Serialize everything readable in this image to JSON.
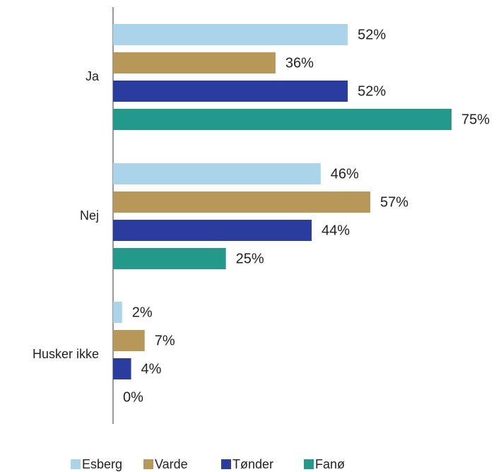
{
  "chart_data": {
    "type": "bar",
    "orientation": "horizontal",
    "categories": [
      "Ja",
      "Nej",
      "Husker ikke"
    ],
    "series": [
      {
        "name": "Esberg",
        "color": "#a9d4ea",
        "values": [
          52,
          46,
          2
        ],
        "value_labels": [
          "52%",
          "46%",
          "2%"
        ]
      },
      {
        "name": "Varde",
        "color": "#b89858",
        "values": [
          36,
          57,
          7
        ],
        "value_labels": [
          "36%",
          "57%",
          "7%"
        ]
      },
      {
        "name": "Tønder",
        "color": "#2a3d9e",
        "values": [
          52,
          44,
          4
        ],
        "value_labels": [
          "52%",
          "44%",
          "4%"
        ]
      },
      {
        "name": "Fanø",
        "color": "#22998a",
        "values": [
          75,
          25,
          0
        ],
        "value_labels": [
          "75%",
          "25%",
          "0%"
        ]
      }
    ],
    "legend": "bottom"
  }
}
